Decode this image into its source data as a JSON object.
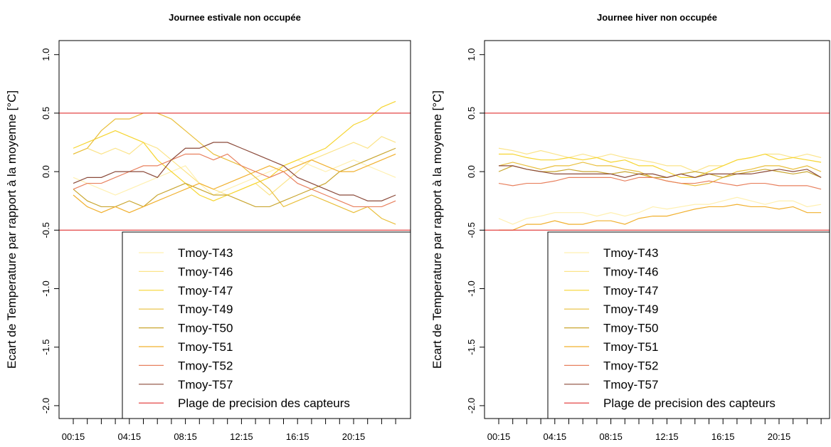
{
  "chart_data": [
    {
      "type": "line",
      "title": "Journee estivale non occupée",
      "ylabel": "Ecart de Temperature par rapport à la moyenne [°C]",
      "categories": [
        "00:15",
        null,
        null,
        null,
        "04:15",
        null,
        null,
        null,
        "08:15",
        null,
        null,
        null,
        "12:15",
        null,
        null,
        null,
        "16:15",
        null,
        null,
        null,
        "20:15",
        null,
        null,
        null
      ],
      "ylim": [
        -2.11,
        1.12
      ],
      "yticks": [
        {
          "value": 1,
          "label": "1.0"
        },
        0.5,
        {
          "value": 0,
          "label": "0.0"
        },
        -0.5,
        {
          "value": -1,
          "label": "-1.0"
        },
        -1.5,
        {
          "value": -2,
          "label": "-2.0"
        }
      ],
      "grid": false,
      "legend": "lower right",
      "series": [
        {
          "name": "Tmoy-T43",
          "color": "#fff0b0",
          "values": [
            -0.05,
            -0.1,
            -0.15,
            -0.2,
            -0.15,
            -0.1,
            -0.05,
            0.0,
            0.05,
            -0.1,
            -0.2,
            -0.15,
            -0.1,
            -0.05,
            0.0,
            0.05,
            0.1,
            0.05,
            0.0,
            0.05,
            0.1,
            0.05,
            0.0,
            -0.05
          ]
        },
        {
          "name": "Tmoy-T46",
          "color": "#fbe48a",
          "values": [
            0.15,
            0.2,
            0.15,
            0.2,
            0.15,
            0.25,
            0.2,
            0.1,
            0.0,
            -0.1,
            -0.15,
            -0.2,
            -0.15,
            -0.1,
            -0.2,
            -0.1,
            0.0,
            0.1,
            0.15,
            0.2,
            0.25,
            0.2,
            0.3,
            0.25
          ]
        },
        {
          "name": "Tmoy-T47",
          "color": "#f6d531",
          "values": [
            0.2,
            0.25,
            0.3,
            0.35,
            0.3,
            0.25,
            0.1,
            0.0,
            -0.1,
            -0.2,
            -0.25,
            -0.2,
            -0.15,
            -0.1,
            -0.05,
            0.05,
            0.1,
            0.15,
            0.2,
            0.3,
            0.4,
            0.45,
            0.55,
            0.6
          ]
        },
        {
          "name": "Tmoy-T49",
          "color": "#e9bf3c",
          "values": [
            0.15,
            0.2,
            0.35,
            0.45,
            0.45,
            0.5,
            0.5,
            0.45,
            0.35,
            0.25,
            0.15,
            0.1,
            0.05,
            -0.05,
            -0.15,
            -0.3,
            -0.25,
            -0.2,
            -0.25,
            -0.3,
            -0.35,
            -0.3,
            -0.4,
            -0.45
          ]
        },
        {
          "name": "Tmoy-T50",
          "color": "#c9a630",
          "values": [
            -0.15,
            -0.25,
            -0.3,
            -0.3,
            -0.25,
            -0.3,
            -0.2,
            -0.15,
            -0.1,
            -0.15,
            -0.2,
            -0.2,
            -0.25,
            -0.3,
            -0.3,
            -0.25,
            -0.2,
            -0.15,
            -0.1,
            0.0,
            0.05,
            0.1,
            0.15,
            0.2
          ]
        },
        {
          "name": "Tmoy-T51",
          "color": "#f1b02e",
          "values": [
            -0.2,
            -0.3,
            -0.35,
            -0.3,
            -0.35,
            -0.3,
            -0.25,
            -0.2,
            -0.15,
            -0.1,
            -0.15,
            -0.1,
            -0.05,
            0.0,
            0.05,
            0.0,
            0.05,
            0.1,
            0.05,
            0.0,
            0.0,
            0.05,
            0.1,
            0.15
          ]
        },
        {
          "name": "Tmoy-T52",
          "color": "#e8805e",
          "values": [
            -0.15,
            -0.1,
            -0.1,
            -0.05,
            0.0,
            0.05,
            0.05,
            0.1,
            0.15,
            0.15,
            0.1,
            0.15,
            0.05,
            0.0,
            -0.05,
            0.0,
            -0.1,
            -0.15,
            -0.2,
            -0.25,
            -0.3,
            -0.3,
            -0.3,
            -0.25
          ]
        },
        {
          "name": "Tmoy-T57",
          "color": "#8b4a3a",
          "values": [
            -0.1,
            -0.05,
            -0.05,
            0.0,
            0.0,
            0.0,
            -0.05,
            0.1,
            0.2,
            0.2,
            0.25,
            0.25,
            0.2,
            0.15,
            0.1,
            0.05,
            -0.05,
            -0.1,
            -0.15,
            -0.2,
            -0.2,
            -0.25,
            -0.25,
            -0.2
          ]
        }
      ],
      "hlines": {
        "name": "Plage de precision des capteurs",
        "color": "#e03030",
        "values": [
          0.5,
          -0.5
        ]
      }
    },
    {
      "type": "line",
      "title": "Journee hiver non occupée",
      "ylabel": "Ecart de Temperature par rapport à la moyenne [°C]",
      "categories": [
        "00:15",
        null,
        null,
        null,
        "04:15",
        null,
        null,
        null,
        "08:15",
        null,
        null,
        null,
        "12:15",
        null,
        null,
        null,
        "16:15",
        null,
        null,
        null,
        "20:15",
        null,
        null,
        null
      ],
      "ylim": [
        -2.11,
        1.12
      ],
      "yticks": [
        {
          "value": 1,
          "label": "1.0"
        },
        0.5,
        {
          "value": 0,
          "label": "0.0"
        },
        -0.5,
        {
          "value": -1,
          "label": "-1.0"
        },
        -1.5,
        {
          "value": -2,
          "label": "-2.0"
        }
      ],
      "grid": false,
      "legend": "lower right",
      "series": [
        {
          "name": "Tmoy-T43",
          "color": "#fff0b0",
          "values": [
            -0.4,
            -0.45,
            -0.4,
            -0.38,
            -0.35,
            -0.35,
            -0.35,
            -0.38,
            -0.35,
            -0.38,
            -0.35,
            -0.3,
            -0.32,
            -0.3,
            -0.28,
            -0.28,
            -0.25,
            -0.22,
            -0.25,
            -0.28,
            -0.25,
            -0.25,
            -0.3,
            -0.28
          ]
        },
        {
          "name": "Tmoy-T46",
          "color": "#fbe48a",
          "values": [
            0.2,
            0.18,
            0.15,
            0.18,
            0.15,
            0.12,
            0.15,
            0.12,
            0.15,
            0.12,
            0.1,
            0.08,
            0.05,
            0.05,
            0.0,
            0.05,
            0.05,
            0.1,
            0.12,
            0.15,
            0.15,
            0.12,
            0.15,
            0.12
          ]
        },
        {
          "name": "Tmoy-T47",
          "color": "#f6d531",
          "values": [
            0.15,
            0.15,
            0.12,
            0.1,
            0.1,
            0.12,
            0.1,
            0.12,
            0.08,
            0.1,
            0.05,
            0.05,
            0.0,
            -0.05,
            -0.05,
            0.0,
            0.05,
            0.1,
            0.12,
            0.15,
            0.1,
            0.12,
            0.1,
            0.08
          ]
        },
        {
          "name": "Tmoy-T49",
          "color": "#e9bf3c",
          "values": [
            0.05,
            0.08,
            0.05,
            0.02,
            0.05,
            0.05,
            0.08,
            0.05,
            0.05,
            0.02,
            0.0,
            -0.05,
            -0.08,
            -0.1,
            -0.12,
            -0.1,
            -0.05,
            0.0,
            0.02,
            0.05,
            0.05,
            0.02,
            0.05,
            0.0
          ]
        },
        {
          "name": "Tmoy-T50",
          "color": "#c9a630",
          "values": [
            0.0,
            0.05,
            0.02,
            0.0,
            0.0,
            0.02,
            0.0,
            0.0,
            -0.02,
            0.0,
            -0.02,
            -0.05,
            -0.05,
            -0.02,
            0.0,
            -0.02,
            -0.05,
            -0.02,
            0.0,
            0.02,
            0.0,
            -0.02,
            0.0,
            -0.05
          ]
        },
        {
          "name": "Tmoy-T51",
          "color": "#f1b02e",
          "values": [
            -0.5,
            -0.5,
            -0.45,
            -0.45,
            -0.42,
            -0.45,
            -0.45,
            -0.42,
            -0.42,
            -0.45,
            -0.4,
            -0.38,
            -0.38,
            -0.35,
            -0.32,
            -0.3,
            -0.3,
            -0.28,
            -0.3,
            -0.3,
            -0.32,
            -0.3,
            -0.35,
            -0.35
          ]
        },
        {
          "name": "Tmoy-T52",
          "color": "#e8805e",
          "values": [
            -0.1,
            -0.12,
            -0.1,
            -0.1,
            -0.08,
            -0.05,
            -0.05,
            -0.05,
            -0.05,
            -0.08,
            -0.05,
            -0.05,
            -0.08,
            -0.1,
            -0.1,
            -0.08,
            -0.1,
            -0.12,
            -0.1,
            -0.1,
            -0.12,
            -0.12,
            -0.12,
            -0.15
          ]
        },
        {
          "name": "Tmoy-T57",
          "color": "#8b4a3a",
          "values": [
            0.05,
            0.05,
            0.02,
            0.0,
            -0.02,
            -0.02,
            -0.02,
            -0.02,
            -0.02,
            -0.05,
            -0.02,
            -0.02,
            -0.05,
            -0.02,
            -0.05,
            -0.02,
            -0.02,
            -0.02,
            -0.02,
            0.0,
            0.02,
            0.0,
            0.02,
            -0.05
          ]
        }
      ],
      "hlines": {
        "name": "Plage de precision des capteurs",
        "color": "#e03030",
        "values": [
          0.5,
          -0.5
        ]
      }
    }
  ]
}
